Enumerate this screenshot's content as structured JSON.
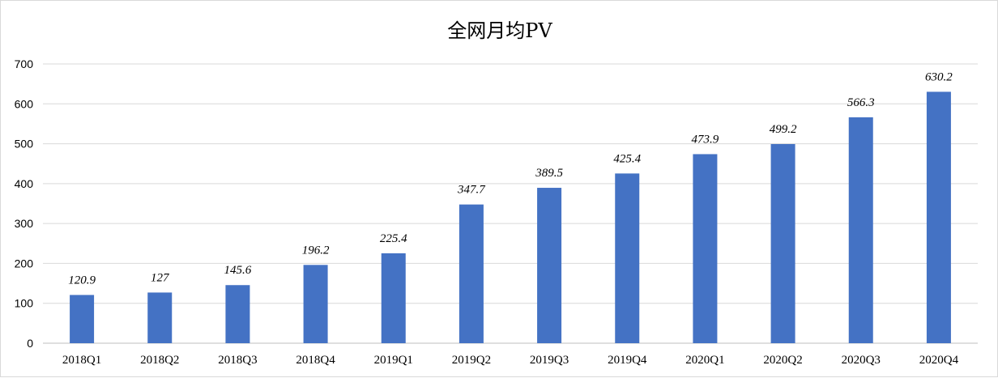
{
  "chart_data": {
    "type": "bar",
    "title": "全网月均PV",
    "xlabel": "",
    "ylabel": "",
    "categories": [
      "2018Q1",
      "2018Q2",
      "2018Q3",
      "2018Q4",
      "2019Q1",
      "2019Q2",
      "2019Q3",
      "2019Q4",
      "2020Q1",
      "2020Q2",
      "2020Q3",
      "2020Q4"
    ],
    "values": [
      120.9,
      127,
      145.6,
      196.2,
      225.4,
      347.7,
      389.5,
      425.4,
      473.9,
      499.2,
      566.3,
      630.2
    ],
    "data_labels": [
      "120.9",
      "127",
      "145.6",
      "196.2",
      "225.4",
      "347.7",
      "389.5",
      "425.4",
      "473.9",
      "499.2",
      "566.3",
      "630.2"
    ],
    "ylim": [
      0,
      700
    ],
    "yticks": [
      "0",
      "100",
      "200",
      "300",
      "400",
      "500",
      "600",
      "700"
    ],
    "grid": true,
    "legend": "none",
    "bar_color": "#4472C4"
  }
}
